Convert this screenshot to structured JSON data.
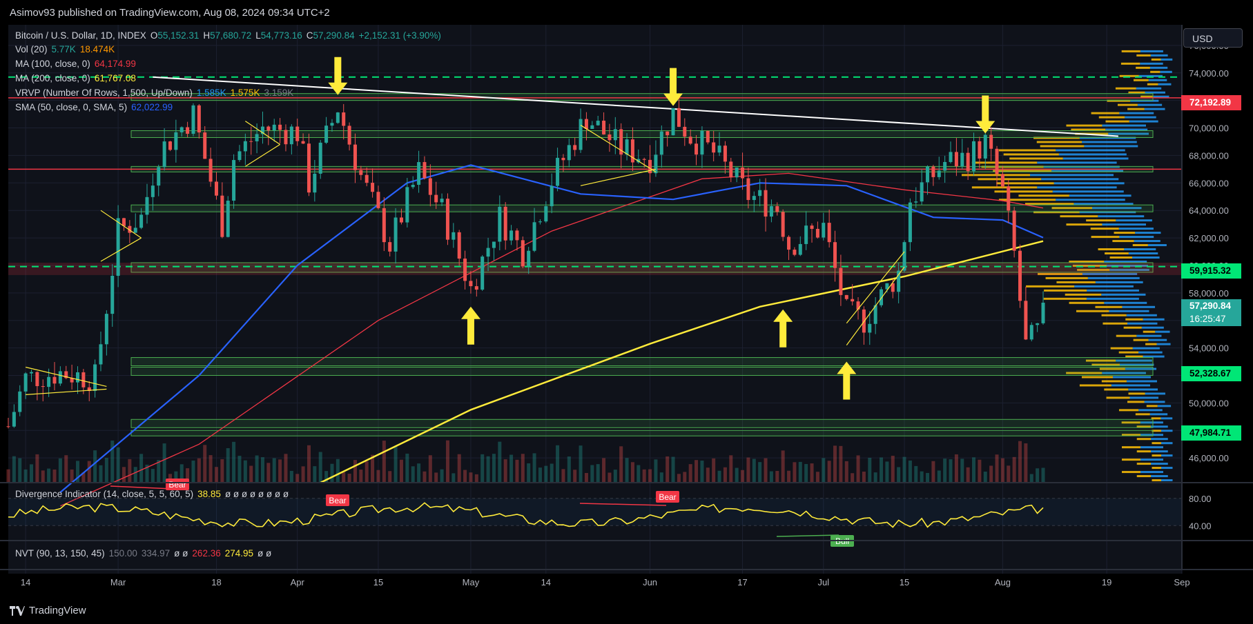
{
  "publisher": "Asimov93 published on TradingView.com, Aug 08, 2024 09:34 UTC+2",
  "legend": {
    "symbol": "Bitcoin / U.S. Dollar, 1D, INDEX",
    "open_label": "O",
    "open": "55,152.31",
    "high_label": "H",
    "high": "57,680.72",
    "low_label": "L",
    "low": "54,773.16",
    "close_label": "C",
    "close": "57,290.84",
    "change": "+2,152.31 (+3.90%)",
    "vol_name": "Vol (20)",
    "vol_a": "5.77K",
    "vol_b": "18.474K",
    "ma100_name": "MA (100, close, 0)",
    "ma100_value": "64,174.99",
    "ma200_name": "MA (200, close, 0)",
    "ma200_value": "61,767.08",
    "vrvp_name": "VRVP (Number Of Rows, 1,500, Up/Down)",
    "vrvp_a": "1.585K",
    "vrvp_b": "1.575K",
    "vrvp_c": "3.159K",
    "sma50_name": "SMA (50, close, 0, SMA, 5)",
    "sma50_value": "62,022.99",
    "divergence_name": "Divergence Indicator (14, close, 5, 5, 60, 5)",
    "divergence_value": "38.85",
    "divergence_na": "ø ø ø ø ø ø ø ø",
    "nvt_name": "NVT (90, 13, 150, 45)",
    "nvt_a": "150.00",
    "nvt_b": "334.97",
    "nvt_na1": "ø ø",
    "nvt_c": "262.36",
    "nvt_d": "274.95",
    "nvt_na2": "ø ø"
  },
  "currency_button": "USD",
  "price_labels": {
    "resistance_high": "72,192.89",
    "support_mid": "59,915.32",
    "last_price": "57,290.84",
    "countdown": "16:25:47",
    "support_low": "52,328.67",
    "support_lowest": "47,984.71"
  },
  "rsi_ticks": [
    "80.00",
    "40.00"
  ],
  "signal_labels": {
    "bear1": "Bear",
    "bear2": "Bear",
    "bear3": "Bear",
    "bull": "Bull"
  },
  "footer_brand": "TradingView",
  "colors": {
    "up": "#26a69a",
    "down": "#ef5350",
    "sma50": "#2962ff",
    "ma100": "#f23645",
    "ma200": "#ffeb3b",
    "zone": "#4caf50",
    "arrow": "#ffeb3b",
    "vrvp_up": "#2196f3",
    "vrvp_down": "#ffc107"
  },
  "chart_data": {
    "type": "candlestick",
    "title": "Bitcoin / U.S. Dollar, 1D, INDEX",
    "y_ticks": [
      46000,
      48000,
      50000,
      52000,
      54000,
      56000,
      58000,
      60000,
      62000,
      64000,
      66000,
      68000,
      70000,
      72000,
      74000,
      76000
    ],
    "y_tick_labels": [
      "46,000.00",
      "48,000.00",
      "50,000.00",
      "52,000.00",
      "54,000.00",
      "56,000.00",
      "58,000.00",
      "60,000.00",
      "62,000.00",
      "64,000.00",
      "66,000.00",
      "68,000.00",
      "70,000.00",
      "72,000.00",
      "74,000.00",
      "76,000.00"
    ],
    "ylim": [
      44200,
      77500
    ],
    "x_ticks": [
      {
        "label": "14",
        "date": "2024-02-14"
      },
      {
        "label": "Mar",
        "date": "2024-03-01"
      },
      {
        "label": "18",
        "date": "2024-03-18"
      },
      {
        "label": "Apr",
        "date": "2024-04-01"
      },
      {
        "label": "15",
        "date": "2024-04-15"
      },
      {
        "label": "May",
        "date": "2024-05-01"
      },
      {
        "label": "14",
        "date": "2024-05-14"
      },
      {
        "label": "Jun",
        "date": "2024-06-01"
      },
      {
        "label": "17",
        "date": "2024-06-17"
      },
      {
        "label": "Jul",
        "date": "2024-07-01"
      },
      {
        "label": "15",
        "date": "2024-07-15"
      },
      {
        "label": "Aug",
        "date": "2024-08-01"
      },
      {
        "label": "19",
        "date": "2024-08-19"
      },
      {
        "label": "Sep",
        "date": "2024-09-01"
      }
    ],
    "xlim": [
      "2024-02-11",
      "2024-09-01"
    ],
    "price_keypoints": [
      [
        "2024-02-11",
        48300
      ],
      [
        "2024-02-14",
        51800
      ],
      [
        "2024-02-20",
        52200
      ],
      [
        "2024-02-26",
        51800
      ],
      [
        "2024-02-28",
        57000
      ],
      [
        "2024-03-01",
        62500
      ],
      [
        "2024-03-05",
        63500
      ],
      [
        "2024-03-08",
        68200
      ],
      [
        "2024-03-14",
        71000
      ],
      [
        "2024-03-19",
        63000
      ],
      [
        "2024-03-21",
        67800
      ],
      [
        "2024-03-26",
        70000
      ],
      [
        "2024-04-01",
        69700
      ],
      [
        "2024-04-03",
        66000
      ],
      [
        "2024-04-08",
        71500
      ],
      [
        "2024-04-12",
        66500
      ],
      [
        "2024-04-17",
        61500
      ],
      [
        "2024-04-22",
        66800
      ],
      [
        "2024-04-26",
        64000
      ],
      [
        "2024-05-01",
        58300
      ],
      [
        "2024-05-06",
        63500
      ],
      [
        "2024-05-10",
        61000
      ],
      [
        "2024-05-15",
        66200
      ],
      [
        "2024-05-21",
        70800
      ],
      [
        "2024-05-27",
        68500
      ],
      [
        "2024-06-01",
        67800
      ],
      [
        "2024-06-05",
        71100
      ],
      [
        "2024-06-08",
        69400
      ],
      [
        "2024-06-12",
        68200
      ],
      [
        "2024-06-18",
        65100
      ],
      [
        "2024-06-23",
        64200
      ],
      [
        "2024-06-25",
        61500
      ],
      [
        "2024-07-01",
        62800
      ],
      [
        "2024-07-05",
        56500
      ],
      [
        "2024-07-08",
        56000
      ],
      [
        "2024-07-14",
        59500
      ],
      [
        "2024-07-16",
        64800
      ],
      [
        "2024-07-22",
        67500
      ],
      [
        "2024-07-26",
        67900
      ],
      [
        "2024-07-29",
        68900
      ],
      [
        "2024-08-01",
        65300
      ],
      [
        "2024-08-03",
        60800
      ],
      [
        "2024-08-05",
        54100
      ],
      [
        "2024-08-07",
        55150
      ],
      [
        "2024-08-08",
        57291
      ]
    ],
    "sma50": [
      [
        "2024-02-20",
        43500
      ],
      [
        "2024-03-15",
        52000
      ],
      [
        "2024-04-01",
        60000
      ],
      [
        "2024-04-20",
        66000
      ],
      [
        "2024-05-01",
        67300
      ],
      [
        "2024-05-20",
        65200
      ],
      [
        "2024-06-05",
        64800
      ],
      [
        "2024-06-20",
        66000
      ],
      [
        "2024-07-05",
        65800
      ],
      [
        "2024-07-20",
        63500
      ],
      [
        "2024-08-01",
        63300
      ],
      [
        "2024-08-08",
        62023
      ]
    ],
    "ma100": [
      [
        "2024-02-20",
        42500
      ],
      [
        "2024-03-15",
        47000
      ],
      [
        "2024-04-15",
        56000
      ],
      [
        "2024-05-15",
        62500
      ],
      [
        "2024-06-10",
        66300
      ],
      [
        "2024-06-25",
        66700
      ],
      [
        "2024-07-15",
        65500
      ],
      [
        "2024-08-01",
        64700
      ],
      [
        "2024-08-08",
        64175
      ]
    ],
    "ma200": [
      [
        "2024-04-05",
        44200
      ],
      [
        "2024-05-01",
        49500
      ],
      [
        "2024-06-01",
        54300
      ],
      [
        "2024-06-20",
        57000
      ],
      [
        "2024-07-15",
        59200
      ],
      [
        "2024-08-08",
        61767
      ]
    ],
    "support_zones": [
      [
        72000,
        72500
      ],
      [
        69300,
        69800
      ],
      [
        66800,
        67200
      ],
      [
        63900,
        64400
      ],
      [
        59500,
        60200
      ],
      [
        52700,
        53300
      ],
      [
        52000,
        52600
      ],
      [
        48200,
        48800
      ],
      [
        47600,
        48000
      ]
    ],
    "dashed_lines": [
      73700,
      59915
    ],
    "red_line": 67000,
    "trendline": [
      [
        "2024-03-07",
        73700
      ],
      [
        "2024-08-21",
        69400
      ]
    ],
    "arrows_down": [
      [
        "2024-04-08",
        72400
      ],
      [
        "2024-06-05",
        71600
      ],
      [
        "2024-07-29",
        69600
      ]
    ],
    "arrows_up": [
      [
        "2024-05-01",
        57000
      ],
      [
        "2024-06-24",
        56800
      ],
      [
        "2024-07-05",
        53000
      ]
    ],
    "rsi_ticks": [
      80,
      40
    ]
  }
}
